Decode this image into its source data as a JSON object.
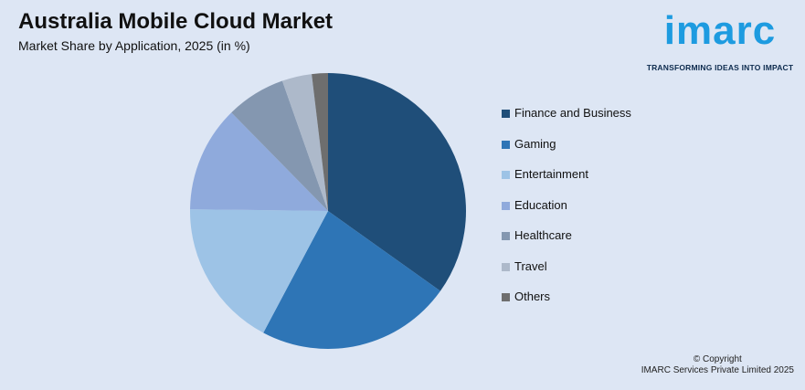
{
  "header": {
    "title": "Australia Mobile Cloud Market",
    "subtitle": "Market Share by Application, 2025 (in %)"
  },
  "logo": {
    "word": "imarc",
    "tagline": "TRANSFORMING IDEAS INTO IMPACT",
    "color": "#1d9be0"
  },
  "chart_data": {
    "type": "pie",
    "title": "Australia Mobile Cloud Market",
    "subtitle": "Market Share by Application, 2025 (in %)",
    "legend_position": "right",
    "categories": [
      "Finance and Business",
      "Gaming",
      "Entertainment",
      "Education",
      "Healthcare",
      "Travel",
      "Others"
    ],
    "values": [
      35,
      23,
      17.5,
      12.5,
      7,
      3.5,
      1.9
    ],
    "colors": [
      "#1f4e79",
      "#2e75b6",
      "#9dc3e6",
      "#8faadc",
      "#8497b0",
      "#adb9ca",
      "#6e6e6e"
    ]
  },
  "footer": {
    "line1": "© Copyright",
    "line2": "IMARC Services Private Limited 2025"
  }
}
